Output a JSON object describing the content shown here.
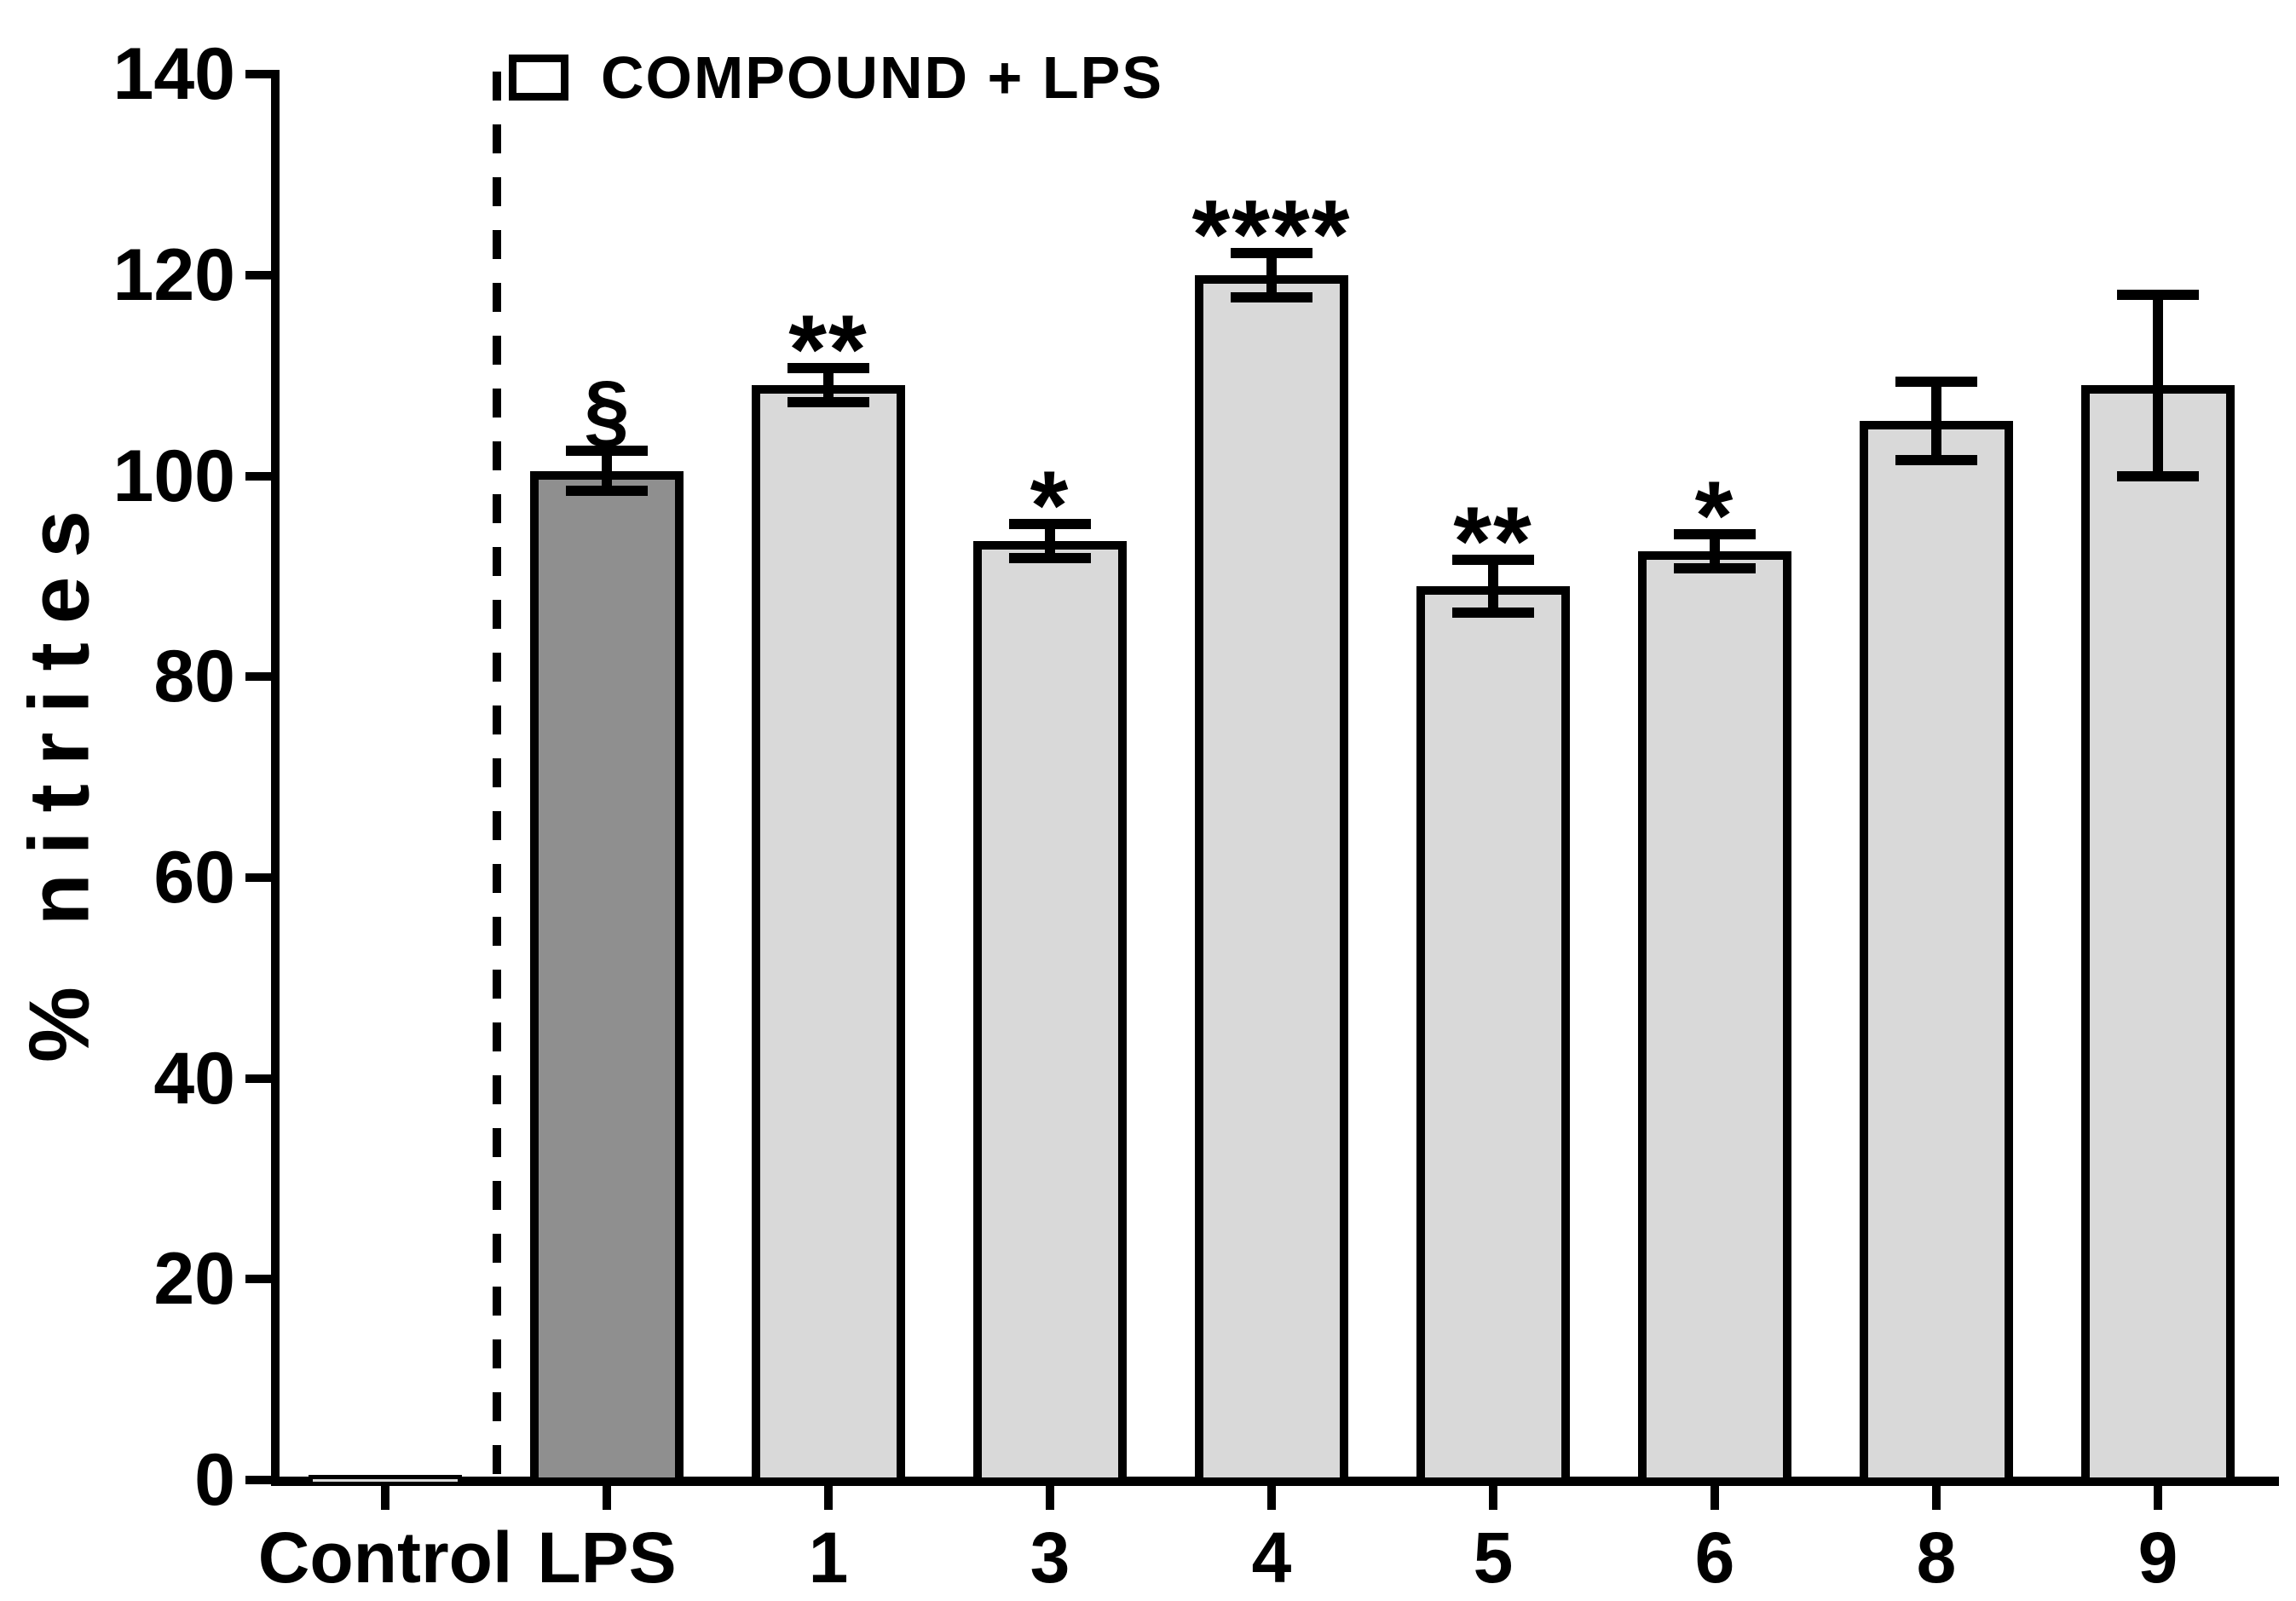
{
  "chart_data": {
    "type": "bar",
    "title": "",
    "ylabel": "% nitrites",
    "xlabel": "",
    "ylim": [
      0,
      140
    ],
    "yticks": [
      0,
      20,
      40,
      60,
      80,
      100,
      120,
      140
    ],
    "grid": false,
    "legend_position": "top-left-inside",
    "legend": [
      {
        "label": "COMPOUND + LPS",
        "color": "#d9d9d9"
      }
    ],
    "categories": [
      "Control",
      "LPS",
      "1",
      "3",
      "4",
      "5",
      "6",
      "8",
      "9"
    ],
    "series": [
      {
        "name": "% nitrites",
        "values": [
          0.5,
          100.5,
          109,
          93.5,
          120,
          89,
          92.5,
          105.5,
          109
        ],
        "errors": [
          0,
          2,
          1.7,
          1.7,
          2.2,
          2.6,
          1.7,
          3.9,
          9
        ],
        "annotations": [
          "",
          "§",
          "**",
          "*",
          "****",
          "**",
          "*",
          "",
          ""
        ],
        "bar_colors": [
          "#d9d9d9",
          "#8f8f8f",
          "#d9d9d9",
          "#d9d9d9",
          "#d9d9d9",
          "#d9d9d9",
          "#d9d9d9",
          "#d9d9d9",
          "#d9d9d9"
        ]
      }
    ],
    "separator": {
      "style": "dashed-vertical-line",
      "between": [
        "Control",
        "LPS"
      ]
    },
    "colors": {
      "bar_light": "#d9d9d9",
      "bar_dark": "#8f8f8f",
      "axis": "#000000"
    }
  }
}
